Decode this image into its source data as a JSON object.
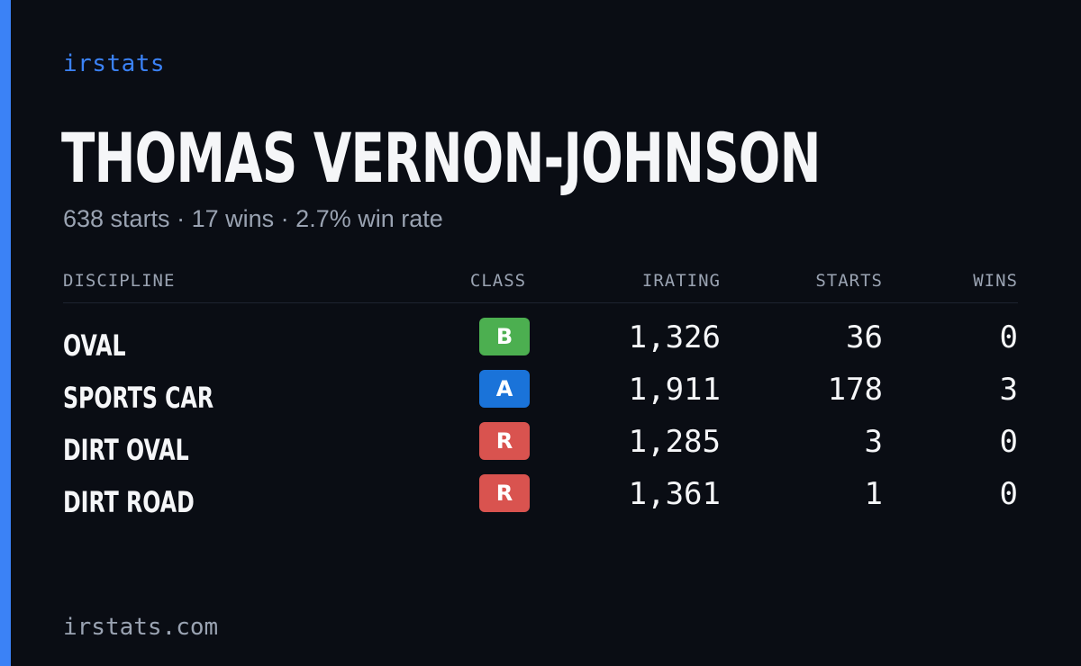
{
  "brand": "irstats",
  "driver": {
    "name": "THOMAS VERNON-JOHNSON",
    "starts_text": "638 starts",
    "wins_text": "17 wins",
    "winrate_text": "2.7% win rate",
    "separator": "·"
  },
  "table": {
    "headers": {
      "discipline": "DISCIPLINE",
      "class": "CLASS",
      "irating": "IRATING",
      "starts": "STARTS",
      "wins": "WINS"
    },
    "rows": [
      {
        "discipline": "OVAL",
        "class": "B",
        "class_color": "#4caf50",
        "irating": "1,326",
        "starts": "36",
        "wins": "0"
      },
      {
        "discipline": "SPORTS CAR",
        "class": "A",
        "class_color": "#1a73d9",
        "irating": "1,911",
        "starts": "178",
        "wins": "3"
      },
      {
        "discipline": "DIRT OVAL",
        "class": "R",
        "class_color": "#d9534f",
        "irating": "1,285",
        "starts": "3",
        "wins": "0"
      },
      {
        "discipline": "DIRT ROAD",
        "class": "R",
        "class_color": "#d9534f",
        "irating": "1,361",
        "starts": "1",
        "wins": "0"
      }
    ]
  },
  "footer": "irstats.com",
  "colors": {
    "background": "#0a0d14",
    "accent": "#3b82f6",
    "muted": "#9aa3b2",
    "text": "#f5f6f8"
  }
}
